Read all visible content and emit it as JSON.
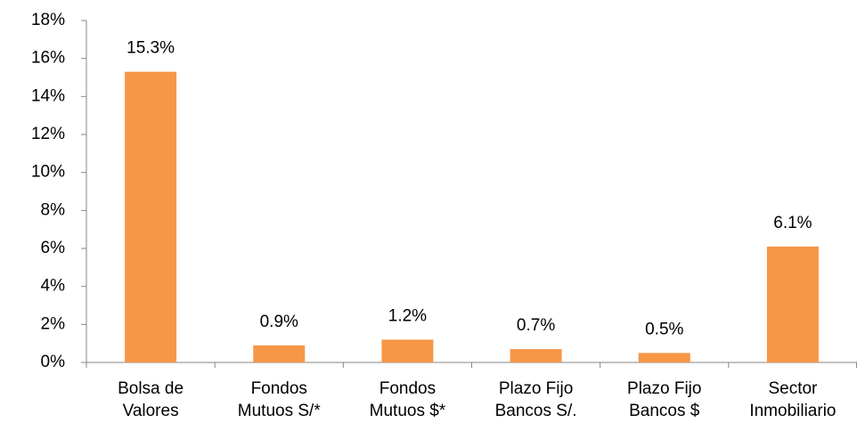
{
  "chart_data": {
    "type": "bar",
    "categories": [
      [
        "Bolsa de",
        "Valores"
      ],
      [
        "Fondos",
        "Mutuos S/*"
      ],
      [
        "Fondos",
        "Mutuos $*"
      ],
      [
        "Plazo Fijo",
        "Bancos S/."
      ],
      [
        "Plazo Fijo",
        "Bancos $"
      ],
      [
        "Sector",
        "Inmobiliario"
      ]
    ],
    "values": [
      15.3,
      0.9,
      1.2,
      0.7,
      0.5,
      6.1
    ],
    "value_labels": [
      "15.3%",
      "0.9%",
      "1.2%",
      "0.7%",
      "0.5%",
      "6.1%"
    ],
    "color": "#f79646",
    "ylim": [
      0,
      18
    ],
    "yticks": [
      {
        "value": 0,
        "label": "0%"
      },
      {
        "value": 2,
        "label": "2%"
      },
      {
        "value": 4,
        "label": "4%"
      },
      {
        "value": 6,
        "label": "6%"
      },
      {
        "value": 8,
        "label": "8%"
      },
      {
        "value": 10,
        "label": "10%"
      },
      {
        "value": 12,
        "label": "12%"
      },
      {
        "value": 14,
        "label": "14%"
      },
      {
        "value": 16,
        "label": "16%"
      },
      {
        "value": 18,
        "label": "18%"
      }
    ],
    "grid": false
  }
}
